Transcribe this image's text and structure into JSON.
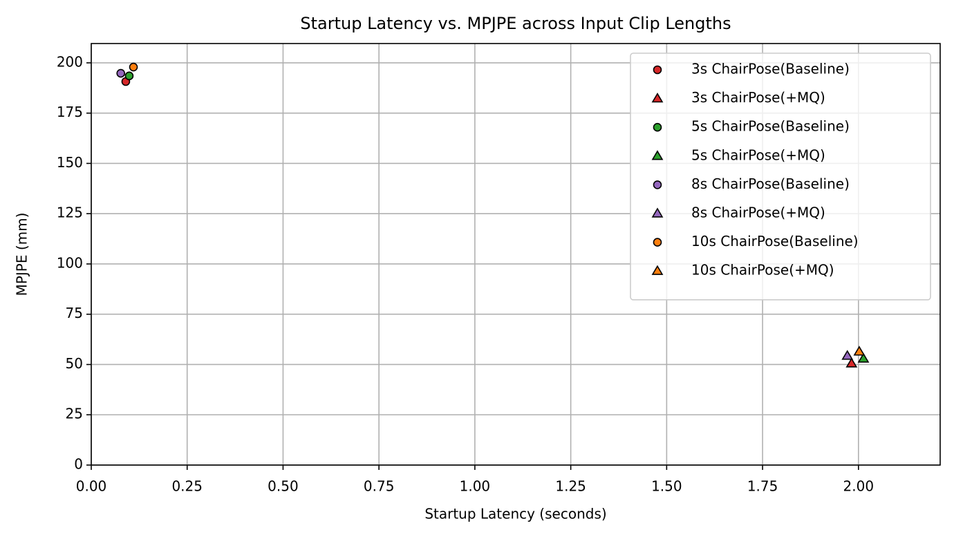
{
  "chart_data": {
    "type": "scatter",
    "title": "Startup Latency vs. MPJPE across Input Clip Lengths",
    "x_label": "Startup Latency (seconds)",
    "y_label": "MPJPE (mm)",
    "xlim": [
      0,
      2.213
    ],
    "ylim": [
      0,
      209.6
    ],
    "xticks": [
      {
        "value": 0,
        "label": "0.00"
      },
      0.25,
      {
        "value": 0.5,
        "label": "0.50"
      },
      0.75,
      {
        "value": 1,
        "label": "1.00"
      },
      1.25,
      {
        "value": 1.5,
        "label": "1.50"
      },
      1.75,
      {
        "value": 2,
        "label": "2.00"
      }
    ],
    "yticks": [
      0,
      25,
      50,
      75,
      100,
      125,
      150,
      175,
      200
    ],
    "grid": true,
    "legend": "upper right",
    "series": [
      {
        "name": "3s ChairPose(Baseline)",
        "color": "#d62728",
        "marker": "circle",
        "x": [
          0.09
        ],
        "values": [
          190.7
        ]
      },
      {
        "name": "3s ChairPose(+MQ)",
        "color": "#d62728",
        "marker": "triangle",
        "x": [
          1.982
        ],
        "values": [
          50.5
        ]
      },
      {
        "name": "5s ChairPose(Baseline)",
        "color": "#2ca02c",
        "marker": "circle",
        "x": [
          0.099
        ],
        "values": [
          193.5
        ]
      },
      {
        "name": "5s ChairPose(+MQ)",
        "color": "#2ca02c",
        "marker": "triangle",
        "x": [
          2.013
        ],
        "values": [
          52.9
        ]
      },
      {
        "name": "8s ChairPose(Baseline)",
        "color": "#9467bd",
        "marker": "circle",
        "x": [
          0.077
        ],
        "values": [
          194.8
        ]
      },
      {
        "name": "8s ChairPose(+MQ)",
        "color": "#9467bd",
        "marker": "triangle",
        "x": [
          1.971
        ],
        "values": [
          54.3
        ]
      },
      {
        "name": "10s ChairPose(Baseline)",
        "color": "#ff7f0e",
        "marker": "circle",
        "x": [
          0.11
        ],
        "values": [
          197.9
        ]
      },
      {
        "name": "10s ChairPose(+MQ)",
        "color": "#ff7f0e",
        "marker": "triangle",
        "x": [
          2.002
        ],
        "values": [
          56.4
        ]
      }
    ]
  }
}
